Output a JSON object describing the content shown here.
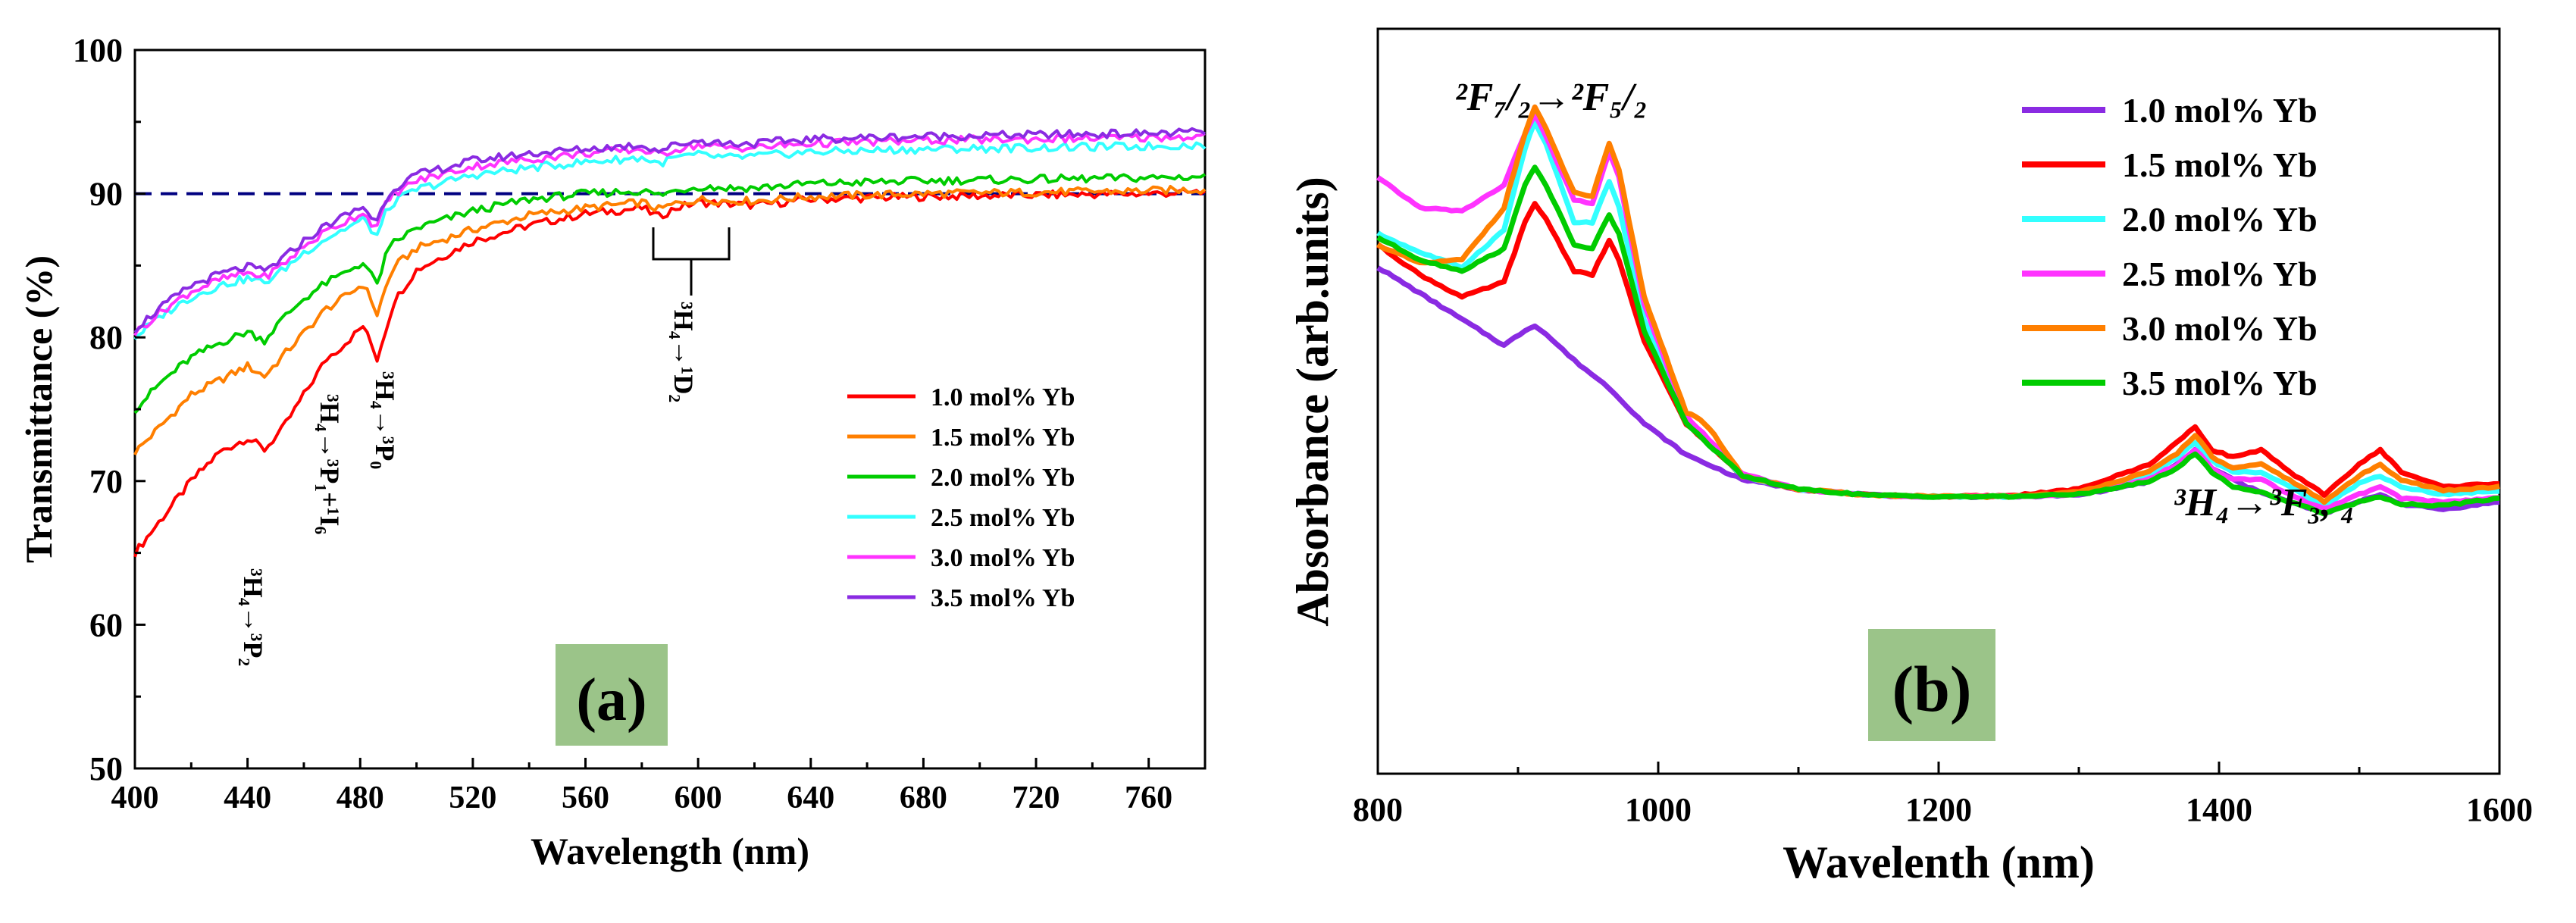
{
  "colors": {
    "series_a": [
      "#ff0000",
      "#ff7f00",
      "#00cc00",
      "#33ffff",
      "#ff33ff",
      "#8a2be2"
    ],
    "series_b": [
      "#8a2be2",
      "#ff0000",
      "#33ffff",
      "#ff33ff",
      "#ff7f00",
      "#00cc00"
    ],
    "label_box": "#9bc489",
    "reference_line": "#000080"
  },
  "chart_data": [
    {
      "type": "line",
      "panel_label": "(a)",
      "xlabel": "Wavelength (nm)",
      "ylabel": "Transmittance (%)",
      "xlim": [
        400,
        780
      ],
      "ylim": [
        50,
        100
      ],
      "xticks": [
        400,
        440,
        480,
        520,
        560,
        600,
        640,
        680,
        720,
        760
      ],
      "yticks": [
        50,
        60,
        70,
        80,
        90,
        100
      ],
      "reference_line_y": 90,
      "legend_position": "lower-right",
      "series": [
        {
          "name": "1.0 mol% Yb",
          "x": [
            400,
            410,
            420,
            430,
            440,
            446,
            452,
            460,
            468,
            473,
            478,
            481,
            484,
            486,
            489,
            492,
            500,
            520,
            540,
            560,
            580,
            586,
            592,
            600,
            610,
            620,
            640,
            680,
            720,
            760,
            780
          ],
          "y": [
            65,
            67.5,
            70,
            72,
            73,
            72.2,
            73.5,
            76,
            78.5,
            79.3,
            80.2,
            80.8,
            79.5,
            78.5,
            80.5,
            82.5,
            84.7,
            86.7,
            87.8,
            88.6,
            89,
            88.4,
            89,
            89.4,
            89.3,
            89.2,
            89.6,
            89.8,
            89.9,
            90,
            90.1
          ]
        },
        {
          "name": "1.5 mol% Yb",
          "x": [
            400,
            410,
            420,
            430,
            440,
            446,
            452,
            460,
            468,
            473,
            478,
            481,
            484,
            486,
            489,
            492,
            500,
            520,
            540,
            560,
            580,
            586,
            592,
            600,
            610,
            620,
            640,
            680,
            720,
            760,
            780
          ],
          "y": [
            72,
            74,
            76,
            77,
            78,
            77.3,
            78.6,
            80.3,
            82,
            82.6,
            83.3,
            83.7,
            82.6,
            81.6,
            83.4,
            84.9,
            86.2,
            87.5,
            88.5,
            89,
            89.4,
            88.9,
            89.3,
            89.6,
            89.5,
            89.5,
            89.8,
            90,
            90.1,
            90.2,
            90.3
          ]
        },
        {
          "name": "2.0 mol% Yb",
          "x": [
            400,
            410,
            420,
            430,
            440,
            446,
            452,
            460,
            468,
            473,
            478,
            481,
            484,
            486,
            489,
            492,
            500,
            520,
            540,
            560,
            580,
            586,
            592,
            600,
            610,
            620,
            640,
            680,
            720,
            760,
            780
          ],
          "y": [
            75,
            77,
            78.6,
            79.6,
            80.4,
            79.8,
            81.2,
            82.7,
            83.8,
            84.3,
            84.9,
            85.2,
            84.3,
            83.7,
            85.6,
            86.6,
            87.6,
            88.8,
            89.6,
            90,
            90.2,
            89.9,
            90.2,
            90.5,
            90.4,
            90.4,
            90.7,
            90.9,
            91,
            91.1,
            91.2
          ]
        },
        {
          "name": "2.5 mol% Yb",
          "x": [
            400,
            410,
            420,
            430,
            440,
            446,
            452,
            460,
            468,
            473,
            478,
            481,
            484,
            486,
            489,
            492,
            500,
            520,
            540,
            560,
            580,
            586,
            592,
            600,
            610,
            620,
            640,
            680,
            720,
            760,
            780
          ],
          "y": [
            80,
            81.6,
            82.8,
            83.6,
            84.1,
            83.8,
            84.6,
            85.9,
            86.9,
            87.4,
            87.9,
            88.2,
            87.5,
            87.1,
            88.6,
            89.4,
            90.3,
            91.3,
            91.8,
            92.2,
            92.5,
            92.1,
            92.5,
            92.7,
            92.5,
            92.6,
            92.9,
            93.1,
            93.2,
            93.3,
            93.4
          ]
        },
        {
          "name": "3.0 mol% Yb",
          "x": [
            400,
            410,
            420,
            430,
            440,
            446,
            452,
            460,
            468,
            473,
            478,
            481,
            484,
            486,
            489,
            492,
            500,
            520,
            540,
            560,
            580,
            586,
            592,
            600,
            610,
            620,
            640,
            680,
            720,
            760,
            780
          ],
          "y": [
            80.3,
            81.9,
            83.2,
            84,
            84.5,
            84.2,
            85,
            86.3,
            87.4,
            87.9,
            88.4,
            88.7,
            88,
            87.7,
            89.2,
            90,
            90.9,
            91.9,
            92.4,
            92.8,
            93.1,
            92.7,
            93.1,
            93.4,
            93.2,
            93.2,
            93.5,
            93.7,
            93.8,
            93.9,
            94
          ]
        },
        {
          "name": "3.5 mol% Yb",
          "x": [
            400,
            410,
            420,
            430,
            440,
            446,
            452,
            460,
            468,
            473,
            478,
            481,
            484,
            486,
            489,
            492,
            500,
            520,
            540,
            560,
            580,
            586,
            592,
            600,
            610,
            620,
            640,
            680,
            720,
            760,
            780
          ],
          "y": [
            80.6,
            82.2,
            83.6,
            84.4,
            84.9,
            84.6,
            85.4,
            86.7,
            87.8,
            88.3,
            88.8,
            89.1,
            88.4,
            88.1,
            89.6,
            90.4,
            91.3,
            92.3,
            92.8,
            93.1,
            93.4,
            93,
            93.4,
            93.7,
            93.5,
            93.5,
            93.8,
            94,
            94.1,
            94.2,
            94.3
          ]
        }
      ],
      "annotations": [
        {
          "text": "³H₄→³P₂"
        },
        {
          "text": "³H₄→³P₁+¹I₆"
        },
        {
          "text": "³H₄→³P₀"
        },
        {
          "text": "³H₄→¹D₂"
        }
      ]
    },
    {
      "type": "line",
      "panel_label": "(b)",
      "xlabel": "Wavelenth (nm)",
      "ylabel": "Absorbance (arb.units)",
      "xlim": [
        800,
        1600
      ],
      "ylim": [
        0,
        100
      ],
      "xticks": [
        800,
        1000,
        1200,
        1400,
        1600
      ],
      "yticks": [],
      "legend_position": "top-right",
      "series": [
        {
          "name": "1.0 mol% Yb",
          "x": [
            800,
            830,
            860,
            890,
            905,
            912,
            920,
            940,
            965,
            990,
            1020,
            1060,
            1100,
            1150,
            1200,
            1250,
            1300,
            1350,
            1370,
            1383,
            1395,
            1420,
            1450,
            1475,
            1500,
            1515,
            1530,
            1560,
            1600
          ],
          "y": [
            68,
            64.5,
            61,
            57.5,
            59.5,
            60.2,
            59,
            55.5,
            51.8,
            47,
            42.8,
            39.5,
            38.2,
            37.4,
            37.2,
            37.2,
            37.4,
            39.2,
            41.5,
            43.5,
            41,
            38.5,
            36.5,
            35,
            36.5,
            37.5,
            36.2,
            35.5,
            36.5
          ]
        },
        {
          "name": "1.5 mol% Yb",
          "x": [
            800,
            830,
            860,
            890,
            905,
            912,
            920,
            940,
            953,
            965,
            972,
            990,
            1020,
            1060,
            1100,
            1150,
            1200,
            1250,
            1300,
            1350,
            1370,
            1383,
            1395,
            1410,
            1430,
            1450,
            1475,
            1500,
            1515,
            1530,
            1560,
            1600
          ],
          "y": [
            71,
            67,
            64,
            66,
            74,
            76.5,
            74.5,
            67.5,
            67,
            71.5,
            69,
            58,
            47,
            40,
            38.2,
            37.4,
            37.2,
            37.3,
            38.2,
            41.5,
            44.5,
            46.5,
            43.5,
            42.5,
            43.5,
            40.5,
            37.5,
            41.5,
            43.5,
            40.5,
            38.5,
            39
          ]
        },
        {
          "name": "2.0 mol% Yb",
          "x": [
            800,
            830,
            860,
            890,
            905,
            912,
            920,
            940,
            953,
            965,
            972,
            990,
            1020,
            1060,
            1100,
            1150,
            1200,
            1250,
            1300,
            1350,
            1370,
            1383,
            1395,
            1410,
            1430,
            1450,
            1475,
            1500,
            1515,
            1530,
            1560,
            1600
          ],
          "y": [
            72.5,
            70,
            68,
            73,
            84,
            87.5,
            84.5,
            74,
            74,
            79.5,
            76,
            61,
            47.5,
            40,
            38.2,
            37.4,
            37.2,
            37.2,
            37.6,
            40,
            42.5,
            44.5,
            42,
            40.5,
            40.5,
            38.5,
            36,
            39,
            40,
            38.5,
            37.5,
            38
          ]
        },
        {
          "name": "2.5 mol% Yb",
          "x": [
            800,
            830,
            860,
            890,
            905,
            912,
            920,
            940,
            953,
            965,
            972,
            990,
            1020,
            1060,
            1100,
            1150,
            1200,
            1250,
            1300,
            1350,
            1370,
            1383,
            1395,
            1410,
            1430,
            1450,
            1475,
            1500,
            1515,
            1530,
            1560,
            1600
          ],
          "y": [
            80,
            76,
            75.5,
            79,
            86,
            88.5,
            85.5,
            77,
            76.5,
            83.5,
            80,
            63,
            48,
            40.2,
            38.2,
            37.4,
            37.2,
            37.2,
            37.5,
            39.5,
            41.5,
            43.5,
            41,
            39.5,
            39.5,
            37.5,
            35.5,
            37.5,
            38.5,
            37,
            36.5,
            37
          ]
        },
        {
          "name": "3.0 mol% Yb",
          "x": [
            800,
            830,
            860,
            890,
            905,
            912,
            920,
            940,
            953,
            965,
            972,
            990,
            1020,
            1030,
            1040,
            1060,
            1100,
            1150,
            1200,
            1250,
            1300,
            1350,
            1370,
            1383,
            1395,
            1410,
            1430,
            1450,
            1475,
            1500,
            1515,
            1530,
            1560,
            1600
          ],
          "y": [
            71,
            68.5,
            69,
            76,
            86,
            89.5,
            86.5,
            78,
            77.5,
            84.5,
            81,
            64,
            48.5,
            47.5,
            45.5,
            40,
            38.2,
            37.4,
            37.2,
            37.2,
            37.8,
            40.5,
            43,
            45.5,
            42.5,
            41,
            41.5,
            39.5,
            36.5,
            40,
            41.5,
            39.5,
            38,
            38.5
          ]
        },
        {
          "name": "3.5 mol% Yb",
          "x": [
            800,
            830,
            860,
            890,
            905,
            912,
            920,
            940,
            953,
            965,
            972,
            990,
            1020,
            1060,
            1100,
            1150,
            1200,
            1250,
            1300,
            1350,
            1370,
            1383,
            1395,
            1410,
            1430,
            1450,
            1475,
            1500,
            1515,
            1530,
            1560,
            1600
          ],
          "y": [
            72,
            69,
            67.5,
            70.5,
            79,
            81.5,
            79,
            71,
            70.5,
            75,
            72.5,
            59.5,
            47,
            40,
            38.2,
            37.4,
            37.2,
            37.2,
            37.5,
            39.2,
            41,
            43,
            40.5,
            38.5,
            37.8,
            36.5,
            35,
            36.5,
            37.2,
            36.2,
            36,
            37
          ]
        }
      ],
      "annotations": [
        {
          "text": "²F₇/₂→²F₅/₂"
        },
        {
          "text": "³H₄→³F₃, ₄"
        }
      ]
    }
  ]
}
